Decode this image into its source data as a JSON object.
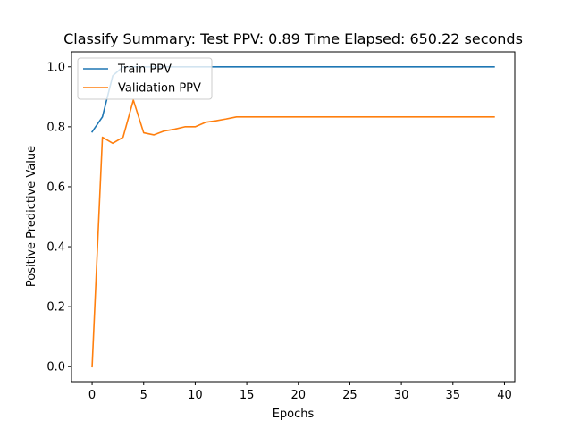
{
  "chart_data": {
    "type": "line",
    "title": "Classify Summary: Test PPV: 0.89 Time Elapsed: 650.22 seconds",
    "xlabel": "Epochs",
    "ylabel": "Positive Predictive Value",
    "xlim": [
      -2,
      41
    ],
    "ylim": [
      -0.05,
      1.05
    ],
    "xticks": [
      0,
      5,
      10,
      15,
      20,
      25,
      30,
      35,
      40
    ],
    "yticks": [
      0.0,
      0.2,
      0.4,
      0.6,
      0.8,
      1.0
    ],
    "xtick_labels": [
      "0",
      "5",
      "10",
      "15",
      "20",
      "25",
      "30",
      "35",
      "40"
    ],
    "ytick_labels": [
      "0.0",
      "0.2",
      "0.4",
      "0.6",
      "0.8",
      "1.0"
    ],
    "legend_position": "top-left",
    "grid": false,
    "x": [
      0,
      1,
      2,
      3,
      4,
      5,
      6,
      7,
      8,
      9,
      10,
      11,
      12,
      13,
      14,
      15,
      16,
      17,
      18,
      19,
      20,
      21,
      22,
      23,
      24,
      25,
      26,
      27,
      28,
      29,
      30,
      31,
      32,
      33,
      34,
      35,
      36,
      37,
      38,
      39
    ],
    "series": [
      {
        "name": "Train PPV",
        "color": "#1f77b4",
        "values": [
          0.783,
          0.833,
          0.97,
          1,
          1,
          1,
          1,
          1,
          1,
          1,
          1,
          1,
          1,
          1,
          1,
          1,
          1,
          1,
          1,
          1,
          1,
          1,
          1,
          1,
          1,
          1,
          1,
          1,
          1,
          1,
          1,
          1,
          1,
          1,
          1,
          1,
          1,
          1,
          1,
          1
        ]
      },
      {
        "name": "Validation PPV",
        "color": "#ff7f0e",
        "values": [
          0.0,
          0.765,
          0.745,
          0.765,
          0.889,
          0.78,
          0.773,
          0.786,
          0.792,
          0.8,
          0.8,
          0.815,
          0.82,
          0.826,
          0.833,
          0.833,
          0.833,
          0.833,
          0.833,
          0.833,
          0.833,
          0.833,
          0.833,
          0.833,
          0.833,
          0.833,
          0.833,
          0.833,
          0.833,
          0.833,
          0.833,
          0.833,
          0.833,
          0.833,
          0.833,
          0.833,
          0.833,
          0.833,
          0.833,
          0.833
        ]
      }
    ]
  }
}
